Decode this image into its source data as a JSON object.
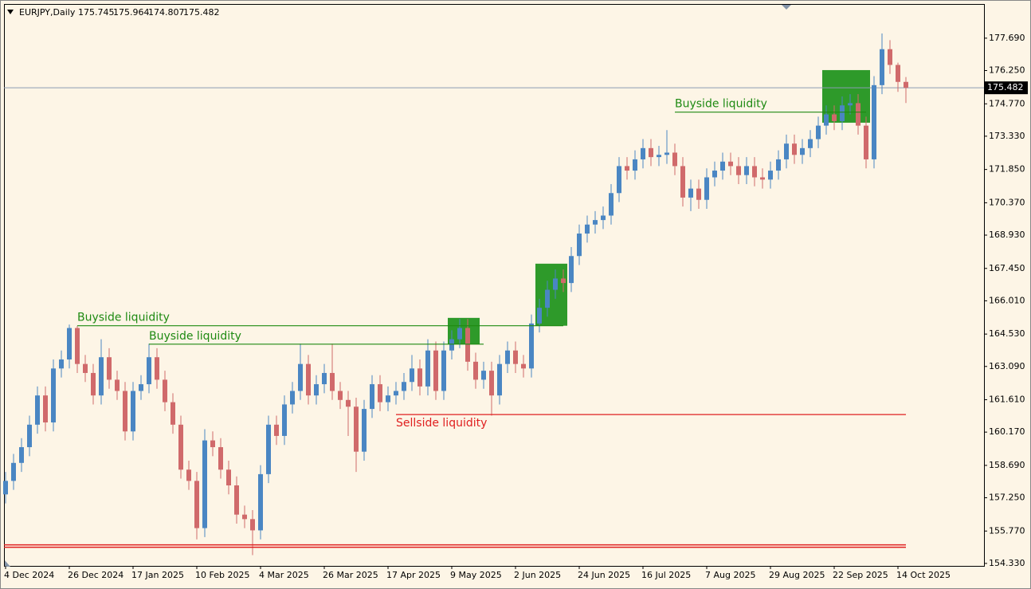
{
  "chart_data": {
    "type": "candlestick",
    "symbol": "EURJPY,Daily",
    "up_color": "#4a86c3",
    "down_color": "#d06a6b",
    "categories": [
      "4 Dec 2024",
      null,
      null,
      null,
      null,
      null,
      null,
      null,
      "26 Dec 2024",
      null,
      null,
      null,
      null,
      null,
      null,
      null,
      "17 Jan 2025",
      null,
      null,
      null,
      null,
      null,
      null,
      null,
      "10 Feb 2025",
      null,
      null,
      null,
      null,
      null,
      null,
      null,
      "4 Mar 2025",
      null,
      null,
      null,
      null,
      null,
      null,
      null,
      "26 Mar 2025",
      null,
      null,
      null,
      null,
      null,
      null,
      null,
      "17 Apr 2025",
      null,
      null,
      null,
      null,
      null,
      null,
      null,
      "9 May 2025",
      null,
      null,
      null,
      null,
      null,
      null,
      null,
      "2 Jun 2025",
      null,
      null,
      null,
      null,
      null,
      null,
      null,
      "24 Jun 2025",
      null,
      null,
      null,
      null,
      null,
      null,
      null,
      "16 Jul 2025",
      null,
      null,
      null,
      null,
      null,
      null,
      null,
      "7 Aug 2025",
      null,
      null,
      null,
      null,
      null,
      null,
      null,
      "29 Aug 2025",
      null,
      null,
      null,
      null,
      null,
      null,
      null,
      "22 Sep 2025",
      null,
      null,
      null,
      null,
      null,
      null,
      null,
      "14 Oct 2025",
      null
    ],
    "open": [
      157.4,
      158.0,
      158.8,
      159.5,
      160.5,
      161.8,
      160.6,
      163.0,
      163.4,
      164.8,
      163.2,
      162.8,
      161.8,
      163.5,
      162.5,
      162.0,
      160.2,
      162.0,
      162.3,
      163.5,
      162.5,
      161.5,
      160.5,
      158.5,
      158.0,
      155.9,
      159.8,
      159.5,
      158.5,
      157.8,
      156.5,
      156.3,
      155.8,
      158.3,
      160.5,
      160.0,
      161.4,
      162.0,
      163.2,
      161.8,
      162.3,
      162.8,
      162.0,
      161.6,
      161.3,
      159.3,
      161.2,
      162.3,
      161.5,
      161.8,
      162.0,
      162.4,
      163.0,
      162.2,
      163.8,
      162.0,
      163.8,
      164.3,
      164.8,
      163.3,
      162.5,
      162.9,
      161.8,
      163.2,
      163.8,
      163.2,
      163.0,
      165.0,
      165.7,
      166.5,
      167.0,
      166.8,
      168.0,
      169.0,
      169.4,
      169.6,
      169.8,
      170.8,
      172.0,
      171.8,
      172.3,
      172.8,
      172.4,
      172.5,
      172.6,
      172.0,
      170.6,
      171.0,
      170.5,
      171.5,
      171.8,
      172.2,
      172.0,
      171.6,
      172.0,
      171.5,
      171.4,
      171.8,
      172.3,
      173.0,
      172.5,
      172.8,
      173.2,
      173.8,
      174.3,
      174.0,
      174.7,
      174.8,
      173.8,
      172.3,
      175.6,
      177.2,
      176.5,
      175.745
    ],
    "high": [
      158.4,
      159.2,
      159.9,
      160.9,
      162.2,
      162.2,
      163.4,
      163.8,
      164.95,
      164.9,
      163.6,
      163.2,
      164.3,
      163.9,
      162.9,
      162.4,
      162.4,
      162.7,
      164.1,
      163.9,
      162.9,
      161.9,
      160.9,
      158.9,
      158.4,
      160.3,
      160.2,
      159.9,
      158.9,
      158.2,
      156.9,
      156.7,
      158.7,
      160.9,
      160.9,
      161.8,
      162.4,
      164.1,
      163.6,
      162.7,
      163.2,
      164.1,
      162.4,
      162.0,
      161.7,
      161.6,
      162.7,
      162.7,
      162.2,
      162.4,
      162.8,
      163.6,
      163.4,
      164.3,
      164.2,
      164.2,
      164.7,
      165.2,
      165.2,
      163.7,
      163.3,
      163.3,
      163.6,
      164.2,
      164.2,
      163.6,
      165.4,
      166.1,
      166.9,
      167.4,
      167.4,
      168.4,
      169.4,
      169.8,
      170.0,
      170.2,
      171.2,
      172.4,
      172.4,
      172.7,
      173.2,
      173.2,
      172.9,
      173.6,
      173.0,
      172.4,
      171.4,
      171.4,
      171.9,
      172.2,
      172.6,
      172.6,
      172.4,
      172.4,
      172.4,
      171.9,
      172.2,
      172.7,
      173.4,
      173.4,
      173.2,
      173.6,
      174.2,
      174.7,
      174.7,
      175.1,
      175.2,
      175.2,
      174.2,
      176.0,
      177.9,
      177.6,
      176.6,
      175.964
    ],
    "low": [
      157.0,
      157.6,
      158.4,
      159.1,
      160.1,
      160.2,
      160.2,
      162.6,
      163.0,
      162.8,
      162.4,
      161.4,
      161.4,
      162.1,
      161.6,
      159.8,
      159.8,
      161.6,
      161.9,
      162.1,
      161.1,
      160.1,
      158.1,
      157.6,
      155.4,
      155.5,
      159.1,
      158.1,
      157.4,
      156.1,
      155.9,
      154.7,
      155.4,
      157.9,
      159.6,
      159.6,
      161.0,
      161.6,
      161.4,
      161.4,
      161.9,
      161.6,
      161.2,
      160.0,
      158.4,
      158.9,
      160.8,
      161.1,
      161.1,
      161.4,
      161.6,
      162.0,
      161.8,
      161.8,
      161.6,
      161.6,
      163.4,
      163.9,
      162.9,
      162.1,
      162.1,
      160.9,
      161.4,
      162.8,
      162.8,
      162.6,
      162.6,
      164.6,
      165.3,
      166.1,
      166.4,
      166.4,
      167.6,
      168.6,
      169.0,
      169.2,
      169.4,
      170.4,
      171.4,
      171.4,
      171.9,
      172.0,
      172.0,
      172.1,
      171.6,
      170.2,
      170.0,
      170.1,
      170.1,
      171.1,
      171.4,
      171.6,
      171.2,
      171.2,
      171.1,
      171.0,
      171.0,
      171.4,
      171.9,
      172.1,
      172.1,
      172.4,
      172.8,
      173.4,
      173.6,
      173.6,
      174.3,
      173.4,
      171.9,
      171.9,
      175.2,
      176.1,
      175.3,
      174.807
    ],
    "close": [
      158.0,
      158.8,
      159.5,
      160.5,
      161.8,
      160.6,
      163.0,
      163.4,
      164.8,
      163.2,
      162.8,
      161.8,
      163.5,
      162.5,
      162.0,
      160.2,
      162.0,
      162.3,
      163.5,
      162.5,
      161.5,
      160.5,
      158.5,
      158.0,
      155.9,
      159.8,
      159.5,
      158.5,
      157.8,
      156.5,
      156.3,
      155.8,
      158.3,
      160.5,
      160.0,
      161.4,
      162.0,
      163.2,
      161.8,
      162.3,
      162.8,
      162.0,
      161.6,
      161.3,
      159.3,
      161.2,
      162.3,
      161.5,
      161.8,
      162.0,
      162.4,
      163.0,
      162.2,
      163.8,
      162.0,
      163.8,
      164.3,
      164.8,
      163.3,
      162.5,
      162.9,
      161.8,
      163.2,
      163.8,
      163.2,
      163.0,
      165.0,
      165.7,
      166.5,
      167.0,
      166.8,
      168.0,
      169.0,
      169.4,
      169.6,
      169.8,
      170.8,
      172.0,
      171.8,
      172.3,
      172.8,
      172.4,
      172.5,
      172.6,
      172.0,
      170.6,
      171.0,
      170.5,
      171.5,
      171.8,
      172.2,
      172.0,
      171.6,
      172.0,
      171.5,
      171.4,
      171.8,
      172.3,
      173.0,
      172.5,
      172.8,
      173.2,
      173.8,
      174.3,
      174.0,
      174.7,
      174.8,
      173.8,
      172.3,
      175.6,
      177.2,
      176.5,
      175.745,
      175.482
    ],
    "ylim": [
      154.22,
      179.21
    ],
    "yticks": [
      {
        "value": 154.33,
        "label": "154.330"
      },
      {
        "value": 155.77,
        "label": "155.770"
      },
      {
        "value": 157.25,
        "label": "157.250"
      },
      {
        "value": 158.69,
        "label": "158.690"
      },
      {
        "value": 160.17,
        "label": "160.170"
      },
      {
        "value": 161.61,
        "label": "161.610"
      },
      {
        "value": 163.09,
        "label": "163.090"
      },
      {
        "value": 164.53,
        "label": "164.530"
      },
      {
        "value": 166.01,
        "label": "166.010"
      },
      {
        "value": 167.45,
        "label": "167.450"
      },
      {
        "value": 168.93,
        "label": "168.930"
      },
      {
        "value": 170.37,
        "label": "170.370"
      },
      {
        "value": 171.85,
        "label": "171.850"
      },
      {
        "value": 173.33,
        "label": "173.330"
      },
      {
        "value": 174.77,
        "label": "174.770"
      },
      {
        "value": 176.25,
        "label": "176.250"
      },
      {
        "value": 177.69,
        "label": "177.690"
      }
    ],
    "levels": [
      {
        "label": "Buyside liquidity",
        "value": 164.9,
        "start": 9,
        "end": 70,
        "color": "#1e8a12",
        "label_side": "above"
      },
      {
        "label": "Buyside liquidity",
        "value": 164.08,
        "start": 18,
        "end": 60,
        "color": "#1e8a12",
        "label_side": "above"
      },
      {
        "label": "Buyside liquidity",
        "value": 174.4,
        "start": 84,
        "end": 108,
        "color": "#1e8a12",
        "label_side": "above"
      },
      {
        "label": "Sellside liquidity",
        "value": 160.95,
        "start": 49,
        "end": 113,
        "color": "#e02020",
        "label_side": "below"
      },
      {
        "value": 155.1,
        "start": 0,
        "end": 113,
        "color": "#e02020",
        "double": true
      }
    ],
    "zones": [
      {
        "start": 56,
        "end": 59,
        "top": 165.25,
        "bottom": 164.08,
        "color": "#2e9a2a"
      },
      {
        "start": 67,
        "end": 70,
        "top": 167.66,
        "bottom": 164.9,
        "color": "#2e9a2a"
      },
      {
        "start": 103,
        "end": 108,
        "top": 176.27,
        "bottom": 173.93,
        "color": "#2e9a2a"
      }
    ],
    "price_line_color": "#8c9db3"
  }
}
